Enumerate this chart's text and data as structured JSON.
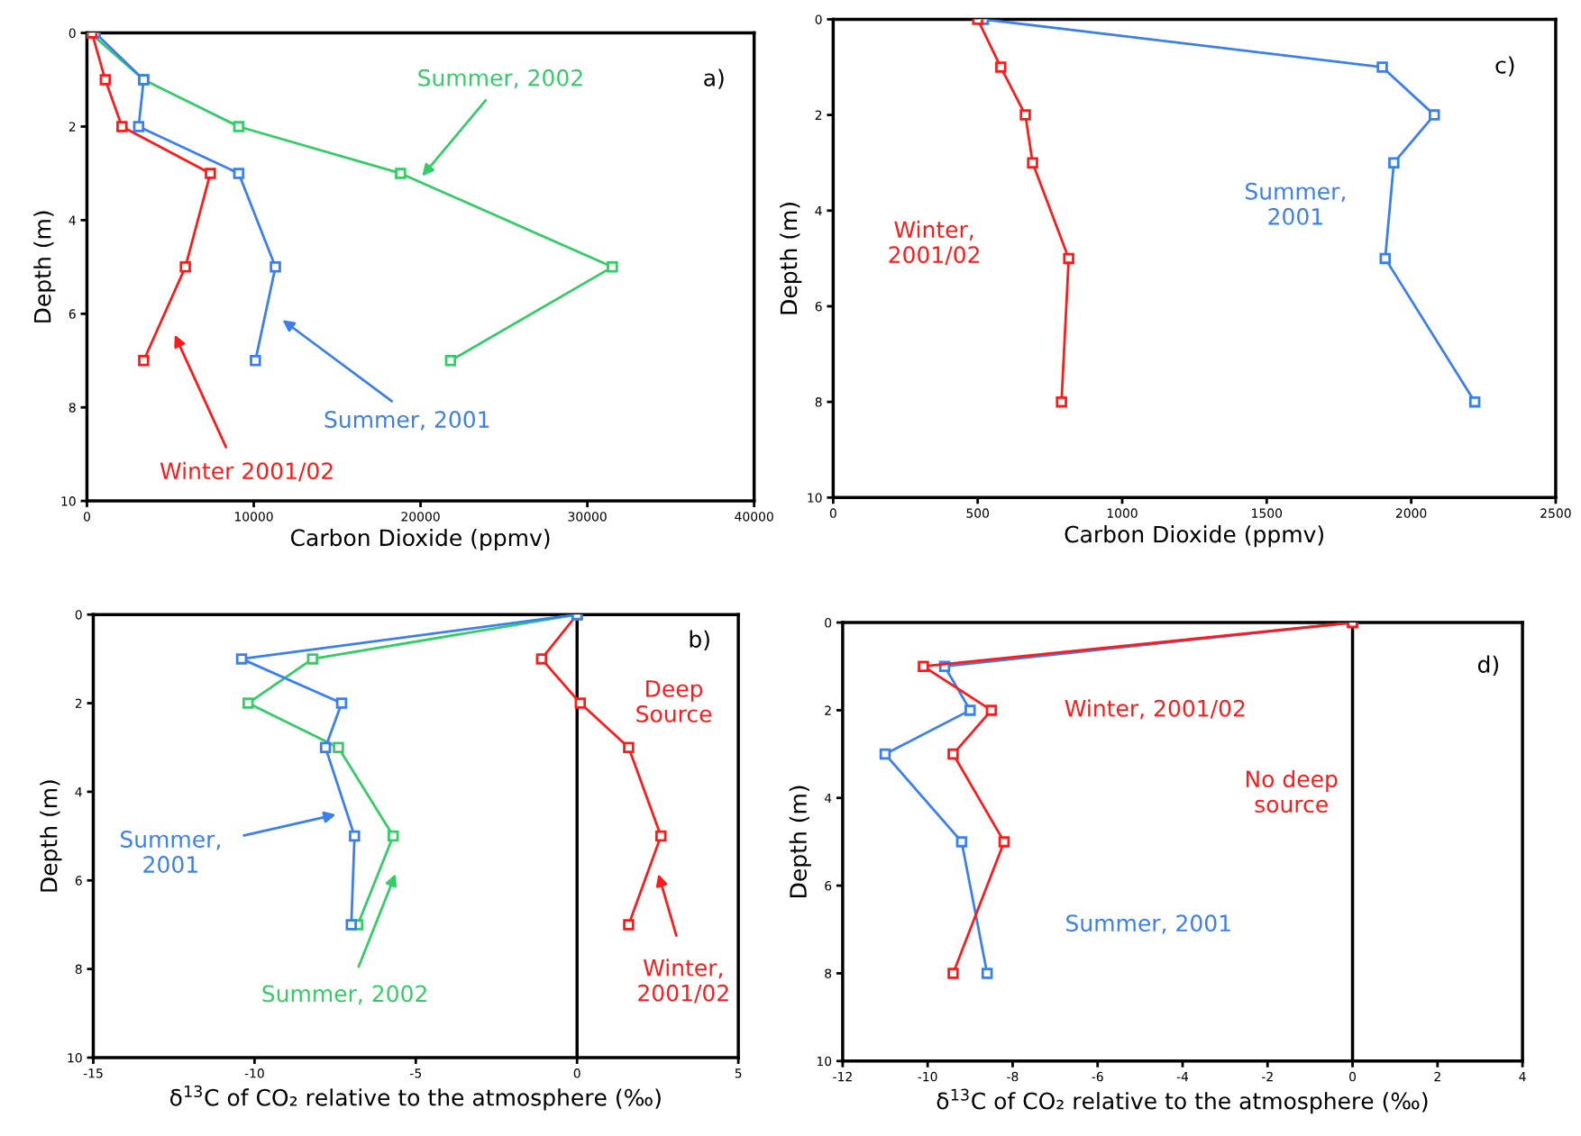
{
  "chart_data": [
    {
      "type": "line",
      "xlabel": "Carbon Dioxide (ppmv)",
      "ylabel": "Depth (m)",
      "xlim": [
        0,
        40000
      ],
      "xticks": [
        0,
        10000,
        20000,
        30000,
        40000
      ],
      "ylim": [
        10,
        0
      ],
      "yticks": [
        0,
        2,
        4,
        6,
        8,
        10
      ],
      "marker": "square",
      "grid": false,
      "series": [
        {
          "color": "#ff1a1a",
          "x": [
            300,
            1100,
            2100,
            7400,
            5900,
            3400
          ],
          "values": [
            0,
            1,
            2,
            3,
            5,
            7
          ]
        },
        {
          "color": "#3a7ff0",
          "x": [
            500,
            3400,
            3100,
            9100,
            11300,
            10100
          ],
          "values": [
            0,
            1,
            2,
            3,
            5,
            7
          ]
        },
        {
          "color": "#33cc66",
          "x": [
            200,
            3400,
            9100,
            18800,
            31500,
            21800
          ],
          "values": [
            0,
            1,
            2,
            3,
            5,
            7
          ]
        }
      ],
      "annotations": [
        "Summer, 2002",
        "Summer, 2001",
        "Winter 2001/02",
        "a)"
      ]
    },
    {
      "type": "line",
      "xlabel": "Carbon Dioxide (ppmv)",
      "ylabel": "Depth (m)",
      "xlim": [
        0,
        2500
      ],
      "xticks": [
        0,
        500,
        1000,
        1500,
        2000,
        2500
      ],
      "ylim": [
        10,
        0
      ],
      "yticks": [
        0,
        2,
        4,
        6,
        8,
        10
      ],
      "marker": "square",
      "grid": false,
      "series": [
        {
          "color": "#ff1a1a",
          "x": [
            500,
            580,
            665,
            690,
            815,
            790
          ],
          "values": [
            0,
            1,
            2,
            3,
            5,
            8
          ]
        },
        {
          "color": "#3a7ff0",
          "x": [
            520,
            1900,
            2080,
            1940,
            1910,
            2220
          ],
          "values": [
            0,
            1,
            2,
            3,
            5,
            8
          ]
        }
      ],
      "annotations": [
        "c)",
        "Summer,\n2001",
        "Winter,\n2001/02"
      ]
    },
    {
      "type": "line",
      "xlabel": "δ$^{13}$C of CO₂ relative to the atmosphere (‰)",
      "ylabel": "Depth (m)",
      "xlim": [
        -15,
        5
      ],
      "xticks": [
        -15,
        -10,
        -5,
        0,
        5
      ],
      "ylim": [
        10,
        0
      ],
      "yticks": [
        0,
        2,
        4,
        6,
        8,
        10
      ],
      "marker": "square",
      "grid": false,
      "ref_lines": [
        {
          "axis": "x",
          "value": 0,
          "color": "#000000"
        }
      ],
      "series": [
        {
          "color": "#3a7ff0",
          "x": [
            0,
            -10.4,
            -7.3,
            -7.8,
            -6.9,
            -7.0
          ],
          "values": [
            0,
            1,
            2,
            3,
            5,
            7
          ]
        },
        {
          "color": "#33cc66",
          "x": [
            0,
            -8.2,
            -10.2,
            -7.4,
            -5.7,
            -6.8
          ],
          "values": [
            0,
            1,
            2,
            3,
            5,
            7
          ]
        },
        {
          "color": "#ff1a1a",
          "x": [
            0,
            -1.1,
            0.1,
            1.6,
            2.6,
            1.6
          ],
          "values": [
            0,
            1,
            2,
            3,
            5,
            7
          ]
        }
      ],
      "annotations": [
        "b)",
        "Deep\nSource",
        "Summer,\n2001",
        "Summer, 2002",
        "Winter,\n2001/02"
      ]
    },
    {
      "type": "line",
      "xlabel": "δ$^{13}$C of CO₂ relative to the atmosphere (‰)",
      "ylabel": "Depth (m)",
      "xlim": [
        -12,
        4
      ],
      "xticks": [
        -12,
        -10,
        -8,
        -6,
        -4,
        -2,
        0,
        2,
        4
      ],
      "ylim": [
        10,
        0
      ],
      "yticks": [
        0,
        2,
        4,
        6,
        8,
        10
      ],
      "marker": "square",
      "grid": false,
      "ref_lines": [
        {
          "axis": "x",
          "value": 0,
          "color": "#000000"
        }
      ],
      "series": [
        {
          "color": "#ff1a1a",
          "x": [
            0,
            -10.1,
            -8.5,
            -9.4,
            -8.2,
            -9.4
          ],
          "values": [
            0,
            1,
            2,
            3,
            5,
            8
          ]
        },
        {
          "color": "#3a7ff0",
          "x": [
            0,
            -9.6,
            -9.0,
            -11.0,
            -9.2,
            -8.6
          ],
          "values": [
            0,
            1,
            2,
            3,
            5,
            8
          ]
        }
      ],
      "annotations": [
        "d)",
        "Winter, 2001/02",
        "No deep\nsource",
        "Summer, 2001"
      ]
    }
  ]
}
